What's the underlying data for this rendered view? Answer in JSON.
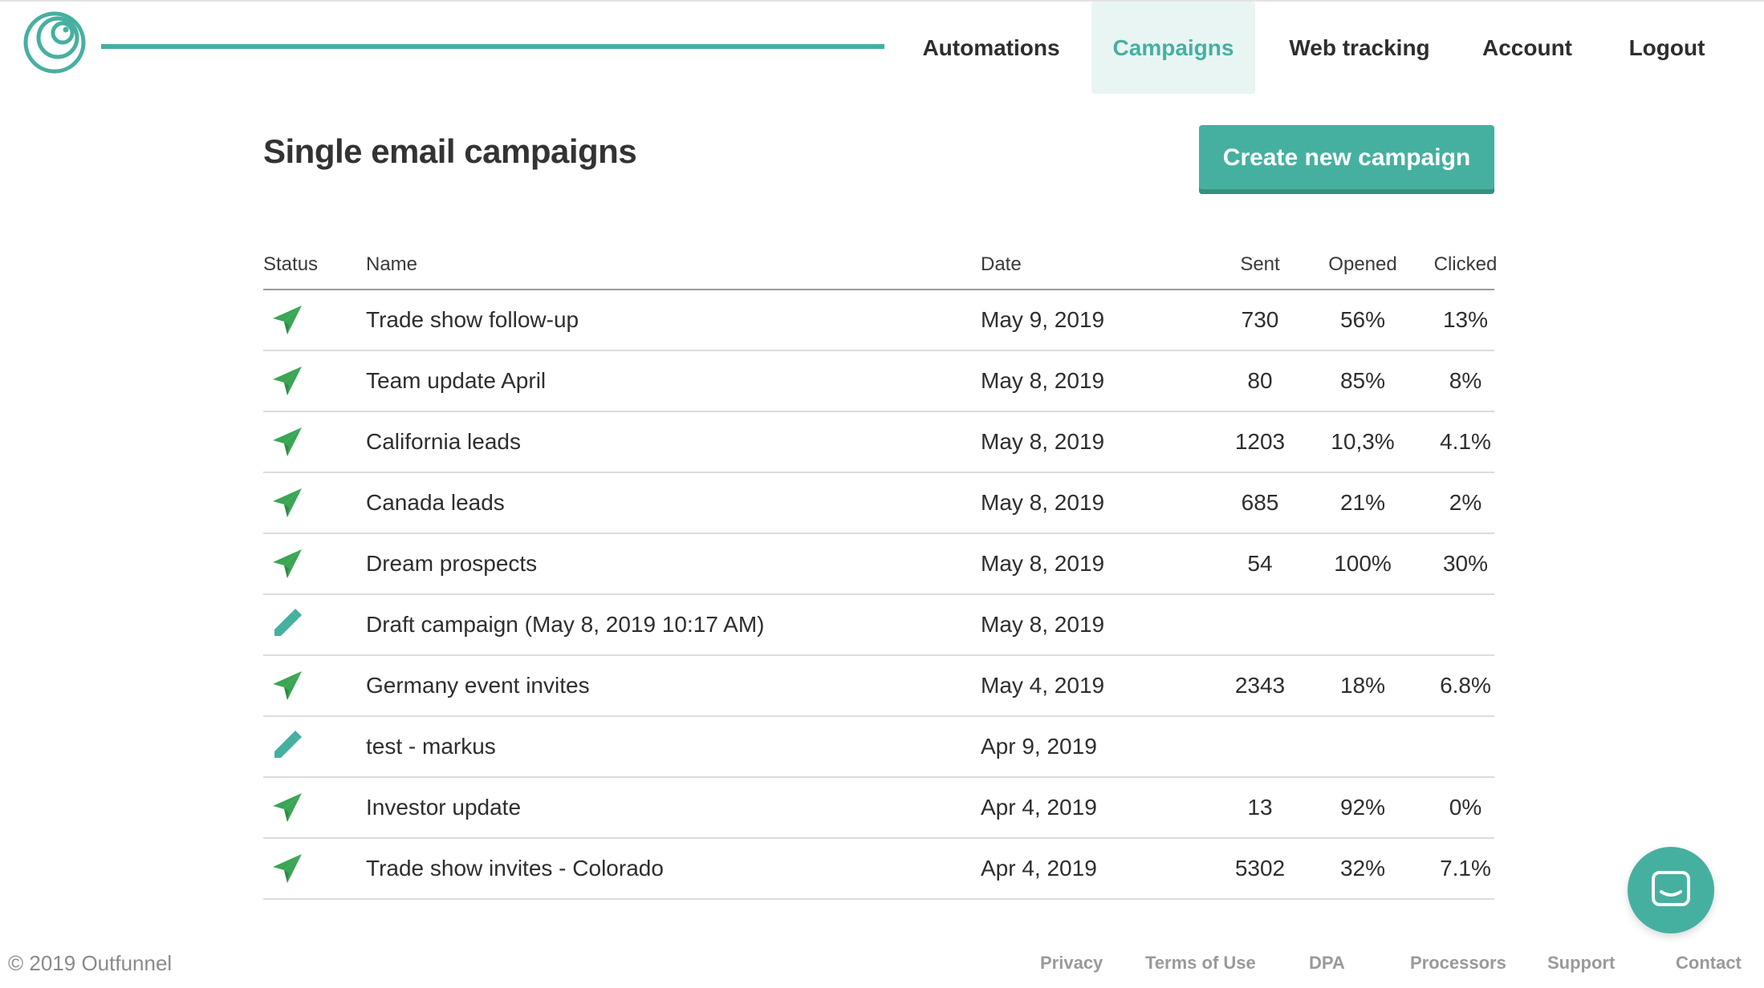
{
  "brand": {
    "accent": "#46b0a0",
    "send_icon_color": "#3aa655",
    "draft_icon_color": "#46b0a0",
    "logo_icon": "outfunnel-swirl-icon"
  },
  "nav": {
    "items": [
      {
        "label": "Automations",
        "active": false
      },
      {
        "label": "Campaigns",
        "active": true
      },
      {
        "label": "Web tracking",
        "active": false
      },
      {
        "label": "Account",
        "active": false
      },
      {
        "label": "Logout",
        "active": false
      }
    ]
  },
  "page": {
    "title": "Single email campaigns",
    "create_button": "Create new campaign"
  },
  "table": {
    "columns": [
      "Status",
      "Name",
      "Date",
      "Sent",
      "Opened",
      "Clicked"
    ],
    "rows": [
      {
        "status": "sent",
        "icon": "paper-plane-icon",
        "name": "Trade show follow-up",
        "date": "May 9, 2019",
        "sent": "730",
        "opened": "56%",
        "clicked": "13%"
      },
      {
        "status": "sent",
        "icon": "paper-plane-icon",
        "name": "Team update April",
        "date": "May 8, 2019",
        "sent": "80",
        "opened": "85%",
        "clicked": "8%"
      },
      {
        "status": "sent",
        "icon": "paper-plane-icon",
        "name": "California leads",
        "date": "May 8, 2019",
        "sent": "1203",
        "opened": "10,3%",
        "clicked": "4.1%"
      },
      {
        "status": "sent",
        "icon": "paper-plane-icon",
        "name": "Canada leads",
        "date": "May 8, 2019",
        "sent": "685",
        "opened": "21%",
        "clicked": "2%"
      },
      {
        "status": "sent",
        "icon": "paper-plane-icon",
        "name": "Dream prospects",
        "date": "May 8, 2019",
        "sent": "54",
        "opened": "100%",
        "clicked": "30%"
      },
      {
        "status": "draft",
        "icon": "pencil-icon",
        "name": "Draft campaign (May 8, 2019 10:17 AM)",
        "date": "May 8, 2019",
        "sent": "",
        "opened": "",
        "clicked": ""
      },
      {
        "status": "sent",
        "icon": "paper-plane-icon",
        "name": "Germany event invites",
        "date": "May 4, 2019",
        "sent": "2343",
        "opened": "18%",
        "clicked": "6.8%"
      },
      {
        "status": "draft",
        "icon": "pencil-icon",
        "name": "test - markus",
        "date": "Apr 9, 2019",
        "sent": "",
        "opened": "",
        "clicked": ""
      },
      {
        "status": "sent",
        "icon": "paper-plane-icon",
        "name": "Investor update",
        "date": "Apr 4, 2019",
        "sent": "13",
        "opened": "92%",
        "clicked": "0%"
      },
      {
        "status": "sent",
        "icon": "paper-plane-icon",
        "name": "Trade show invites - Colorado",
        "date": "Apr 4, 2019",
        "sent": "5302",
        "opened": "32%",
        "clicked": "7.1%"
      }
    ]
  },
  "footer": {
    "copyright": "© 2019 Outfunnel",
    "links": [
      "Privacy",
      "Terms of Use",
      "DPA",
      "Processors",
      "Support",
      "Contact"
    ]
  },
  "chat": {
    "icon": "chat-bubble-icon"
  }
}
